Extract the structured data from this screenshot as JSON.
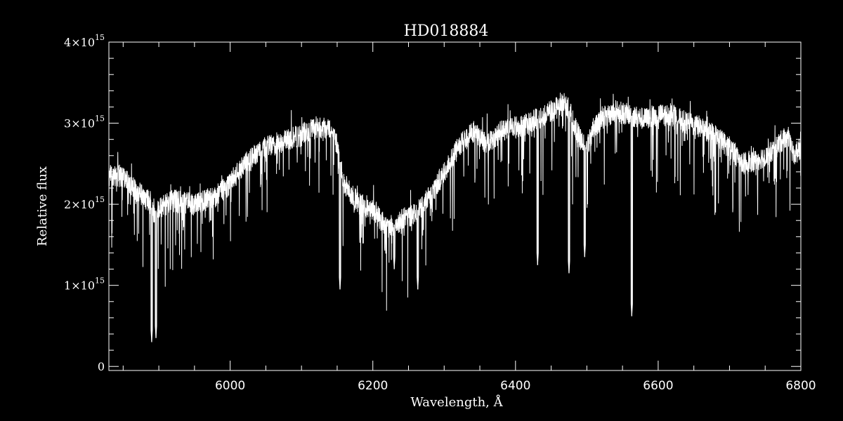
{
  "chart_data": {
    "type": "line",
    "title": "HD018884",
    "xlabel": "Wavelength, Å",
    "ylabel": "Relative flux",
    "xlim": [
      5830,
      6800
    ],
    "ylim": [
      -50000000000000.0,
      4000000000000000.0
    ],
    "x_ticks": [
      6000,
      6200,
      6400,
      6600,
      6800
    ],
    "x_tick_labels": [
      "6000",
      "6200",
      "6400",
      "6600",
      "6800"
    ],
    "y_ticks": [
      0,
      1000000000000000.0,
      2000000000000000.0,
      3000000000000000.0,
      4000000000000000.0
    ],
    "y_tick_labels": [
      {
        "mantissa": "0",
        "exp": ""
      },
      {
        "mantissa": "1×10",
        "exp": "15"
      },
      {
        "mantissa": "2×10",
        "exp": "15"
      },
      {
        "mantissa": "3×10",
        "exp": "15"
      },
      {
        "mantissa": "4×10",
        "exp": "15"
      }
    ],
    "grid": false,
    "colors": {
      "background": "#000000",
      "foreground": "#ffffff"
    },
    "series": [
      {
        "x": [
          5830,
          5850,
          5870,
          5885,
          5893,
          5900,
          5920,
          5950,
          5980,
          6000,
          6020,
          6050,
          6080,
          6100,
          6120,
          6140,
          6150,
          6160,
          6180,
          6200,
          6220,
          6240,
          6260,
          6280,
          6300,
          6320,
          6340,
          6360,
          6380,
          6400,
          6420,
          6440,
          6460,
          6470,
          6480,
          6490,
          6500,
          6510,
          6520,
          6540,
          6560,
          6580,
          6600,
          6620,
          6640,
          6660,
          6680,
          6700,
          6720,
          6740,
          6760,
          6780,
          6790,
          6800
        ],
        "y": [
          2350000000000000.0,
          2350000000000000.0,
          2150000000000000.0,
          2050000000000000.0,
          1900000000000000.0,
          1950000000000000.0,
          2050000000000000.0,
          2000000000000000.0,
          2100000000000000.0,
          2250000000000000.0,
          2500000000000000.0,
          2700000000000000.0,
          2800000000000000.0,
          2850000000000000.0,
          2950000000000000.0,
          2950000000000000.0,
          2700000000000000.0,
          2250000000000000.0,
          2000000000000000.0,
          1950000000000000.0,
          1700000000000000.0,
          1800000000000000.0,
          1900000000000000.0,
          2100000000000000.0,
          2400000000000000.0,
          2700000000000000.0,
          2900000000000000.0,
          2750000000000000.0,
          2900000000000000.0,
          2950000000000000.0,
          3000000000000000.0,
          3100000000000000.0,
          3200000000000000.0,
          3250000000000000.0,
          3050000000000000.0,
          2800000000000000.0,
          2700000000000000.0,
          2950000000000000.0,
          3050000000000000.0,
          3150000000000000.0,
          3100000000000000.0,
          3050000000000000.0,
          3100000000000000.0,
          3100000000000000.0,
          3000000000000000.0,
          2950000000000000.0,
          2850000000000000.0,
          2700000000000000.0,
          2500000000000000.0,
          2550000000000000.0,
          2650000000000000.0,
          2850000000000000.0,
          2600000000000000.0,
          2700000000000000.0
        ]
      }
    ],
    "absorption_lines": [
      {
        "x": 5890,
        "y": 300000000000000.0
      },
      {
        "x": 5896,
        "y": 350000000000000.0
      },
      {
        "x": 6563,
        "y": 620000000000000.0
      },
      {
        "x": 6497,
        "y": 1350000000000000.0
      },
      {
        "x": 6154,
        "y": 950000000000000.0
      },
      {
        "x": 6230,
        "y": 1200000000000000.0
      },
      {
        "x": 6263,
        "y": 950000000000000.0
      },
      {
        "x": 6475,
        "y": 1150000000000000.0
      },
      {
        "x": 6431,
        "y": 1250000000000000.0
      }
    ]
  }
}
